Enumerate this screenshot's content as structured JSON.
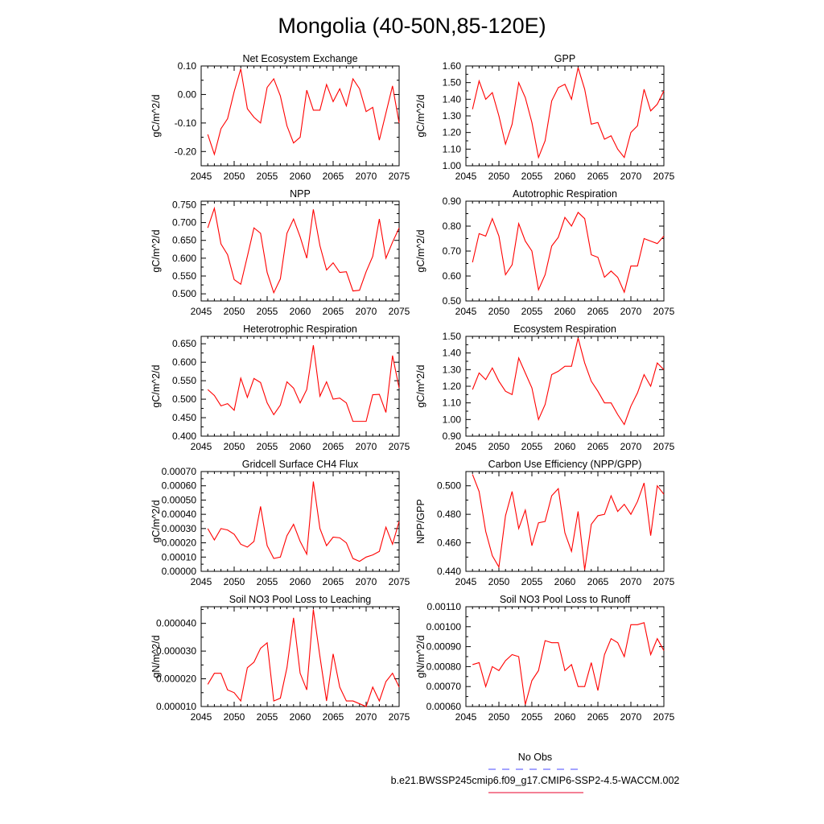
{
  "figure": {
    "title": "Mongolia (40-50N,85-120E)",
    "legend": {
      "obs_label": "No Obs",
      "obs_color": "#4a4aff",
      "model_label": "b.e21.BWSSP245cmip6.f09_g17.CMIP6-SSP2-4.5-WACCM.002",
      "model_color": "#e8002b"
    },
    "line_color": "#ff0000"
  },
  "chart_data": [
    {
      "type": "line",
      "title": "Net Ecosystem Exchange",
      "ylabel": "gC/m^2/d",
      "xlim": [
        2045,
        2075
      ],
      "ylim": [
        -0.25,
        0.1
      ],
      "xticks": [
        2045,
        2050,
        2055,
        2060,
        2065,
        2070,
        2075
      ],
      "yticks": [
        "-0.20",
        "-0.10",
        "0.00",
        "0.10"
      ],
      "x": [
        2046,
        2047,
        2048,
        2049,
        2050,
        2051,
        2052,
        2053,
        2054,
        2055,
        2056,
        2057,
        2058,
        2059,
        2060,
        2061,
        2062,
        2063,
        2064,
        2065,
        2066,
        2067,
        2068,
        2069,
        2070,
        2071,
        2072,
        2073,
        2074,
        2075
      ],
      "y": [
        -0.14,
        -0.21,
        -0.12,
        -0.085,
        0.01,
        0.09,
        -0.05,
        -0.08,
        -0.1,
        0.025,
        0.055,
        -0.005,
        -0.11,
        -0.17,
        -0.15,
        0.015,
        -0.055,
        -0.055,
        0.035,
        -0.025,
        0.02,
        -0.04,
        0.055,
        0.02,
        -0.06,
        -0.045,
        -0.16,
        -0.065,
        0.03,
        -0.1
      ]
    },
    {
      "type": "line",
      "title": "GPP",
      "ylabel": "gC/m^2/d",
      "xlim": [
        2045,
        2075
      ],
      "ylim": [
        1.0,
        1.6
      ],
      "xticks": [
        2045,
        2050,
        2055,
        2060,
        2065,
        2070,
        2075
      ],
      "yticks": [
        "1.00",
        "1.10",
        "1.20",
        "1.30",
        "1.40",
        "1.50",
        "1.60"
      ],
      "x": [
        2046,
        2047,
        2048,
        2049,
        2050,
        2051,
        2052,
        2053,
        2054,
        2055,
        2056,
        2057,
        2058,
        2059,
        2060,
        2061,
        2062,
        2063,
        2064,
        2065,
        2066,
        2067,
        2068,
        2069,
        2070,
        2071,
        2072,
        2073,
        2074,
        2075
      ],
      "y": [
        1.34,
        1.51,
        1.4,
        1.44,
        1.3,
        1.13,
        1.25,
        1.5,
        1.41,
        1.26,
        1.05,
        1.15,
        1.39,
        1.47,
        1.49,
        1.4,
        1.59,
        1.46,
        1.25,
        1.26,
        1.16,
        1.18,
        1.1,
        1.05,
        1.2,
        1.24,
        1.46,
        1.33,
        1.37,
        1.45
      ]
    },
    {
      "type": "line",
      "title": "NPP",
      "ylabel": "gC/m^2/d",
      "xlim": [
        2045,
        2075
      ],
      "ylim": [
        0.48,
        0.76
      ],
      "xticks": [
        2045,
        2050,
        2055,
        2060,
        2065,
        2070,
        2075
      ],
      "yticks": [
        "0.500",
        "0.550",
        "0.600",
        "0.650",
        "0.700",
        "0.750"
      ],
      "x": [
        2046,
        2047,
        2048,
        2049,
        2050,
        2051,
        2052,
        2053,
        2054,
        2055,
        2056,
        2057,
        2058,
        2059,
        2060,
        2061,
        2062,
        2063,
        2064,
        2065,
        2066,
        2067,
        2068,
        2069,
        2070,
        2071,
        2072,
        2073,
        2074,
        2075
      ],
      "y": [
        0.685,
        0.74,
        0.64,
        0.61,
        0.54,
        0.527,
        0.605,
        0.685,
        0.67,
        0.56,
        0.503,
        0.542,
        0.67,
        0.71,
        0.66,
        0.6,
        0.737,
        0.635,
        0.567,
        0.587,
        0.56,
        0.562,
        0.508,
        0.51,
        0.562,
        0.605,
        0.71,
        0.6,
        0.645,
        0.685
      ]
    },
    {
      "type": "line",
      "title": "Autotrophic Respiration",
      "ylabel": "gC/m^2/d",
      "xlim": [
        2045,
        2075
      ],
      "ylim": [
        0.5,
        0.9
      ],
      "xticks": [
        2045,
        2050,
        2055,
        2060,
        2065,
        2070,
        2075
      ],
      "yticks": [
        "0.50",
        "0.60",
        "0.70",
        "0.80",
        "0.90"
      ],
      "x": [
        2046,
        2047,
        2048,
        2049,
        2050,
        2051,
        2052,
        2053,
        2054,
        2055,
        2056,
        2057,
        2058,
        2059,
        2060,
        2061,
        2062,
        2063,
        2064,
        2065,
        2066,
        2067,
        2068,
        2069,
        2070,
        2071,
        2072,
        2073,
        2074,
        2075
      ],
      "y": [
        0.655,
        0.77,
        0.76,
        0.83,
        0.76,
        0.605,
        0.645,
        0.81,
        0.74,
        0.7,
        0.545,
        0.605,
        0.72,
        0.755,
        0.835,
        0.8,
        0.855,
        0.83,
        0.685,
        0.675,
        0.595,
        0.62,
        0.595,
        0.535,
        0.64,
        0.64,
        0.75,
        0.74,
        0.73,
        0.76
      ]
    },
    {
      "type": "line",
      "title": "Heterotrophic Respiration",
      "ylabel": "gC/m^2/d",
      "xlim": [
        2045,
        2075
      ],
      "ylim": [
        0.4,
        0.67
      ],
      "xticks": [
        2045,
        2050,
        2055,
        2060,
        2065,
        2070,
        2075
      ],
      "yticks": [
        "0.400",
        "0.450",
        "0.500",
        "0.550",
        "0.600",
        "0.650"
      ],
      "x": [
        2046,
        2047,
        2048,
        2049,
        2050,
        2051,
        2052,
        2053,
        2054,
        2055,
        2056,
        2057,
        2058,
        2059,
        2060,
        2061,
        2062,
        2063,
        2064,
        2065,
        2066,
        2067,
        2068,
        2069,
        2070,
        2071,
        2072,
        2073,
        2074,
        2075
      ],
      "y": [
        0.526,
        0.51,
        0.482,
        0.488,
        0.47,
        0.557,
        0.505,
        0.556,
        0.545,
        0.49,
        0.458,
        0.484,
        0.547,
        0.53,
        0.49,
        0.526,
        0.646,
        0.508,
        0.547,
        0.5,
        0.503,
        0.49,
        0.44,
        0.44,
        0.44,
        0.512,
        0.513,
        0.464,
        0.618,
        0.53
      ]
    },
    {
      "type": "line",
      "title": "Ecosystem Respiration",
      "ylabel": "gC/m^2/d",
      "xlim": [
        2045,
        2075
      ],
      "ylim": [
        0.9,
        1.5
      ],
      "xticks": [
        2045,
        2050,
        2055,
        2060,
        2065,
        2070,
        2075
      ],
      "yticks": [
        "0.90",
        "1.00",
        "1.10",
        "1.20",
        "1.30",
        "1.40",
        "1.50"
      ],
      "x": [
        2046,
        2047,
        2048,
        2049,
        2050,
        2051,
        2052,
        2053,
        2054,
        2055,
        2056,
        2057,
        2058,
        2059,
        2060,
        2061,
        2062,
        2063,
        2064,
        2065,
        2066,
        2067,
        2068,
        2069,
        2070,
        2071,
        2072,
        2073,
        2074,
        2075
      ],
      "y": [
        1.18,
        1.28,
        1.24,
        1.31,
        1.23,
        1.17,
        1.15,
        1.37,
        1.28,
        1.19,
        1.0,
        1.09,
        1.27,
        1.29,
        1.32,
        1.32,
        1.49,
        1.34,
        1.23,
        1.17,
        1.1,
        1.1,
        1.03,
        0.97,
        1.08,
        1.16,
        1.27,
        1.2,
        1.34,
        1.3
      ]
    },
    {
      "type": "line",
      "title": "Gridcell Surface CH4 Flux",
      "ylabel": "gC/m^2/d",
      "xlim": [
        2045,
        2075
      ],
      "ylim": [
        0.0,
        0.0007
      ],
      "xticks": [
        2045,
        2050,
        2055,
        2060,
        2065,
        2070,
        2075
      ],
      "yticks": [
        "0.00000",
        "0.00010",
        "0.00020",
        "0.00030",
        "0.00040",
        "0.00050",
        "0.00060",
        "0.00070"
      ],
      "x": [
        2046,
        2047,
        2048,
        2049,
        2050,
        2051,
        2052,
        2053,
        2054,
        2055,
        2056,
        2057,
        2058,
        2059,
        2060,
        2061,
        2062,
        2063,
        2064,
        2065,
        2066,
        2067,
        2068,
        2069,
        2070,
        2071,
        2072,
        2073,
        2074,
        2075
      ],
      "y": [
        0.0003,
        0.00022,
        0.0003,
        0.00029,
        0.00026,
        0.00019,
        0.00017,
        0.00021,
        0.000455,
        0.00018,
        9e-05,
        0.0001,
        0.00025,
        0.00033,
        0.00021,
        0.00012,
        0.00063,
        0.0003,
        0.00018,
        0.00024,
        0.000235,
        0.0002,
        9e-05,
        7e-05,
        0.0001,
        0.000115,
        0.00014,
        0.00031,
        0.00019,
        0.00035
      ]
    },
    {
      "type": "line",
      "title": "Carbon Use Efficiency (NPP/GPP)",
      "ylabel": "NPP/GPP",
      "xlim": [
        2045,
        2075
      ],
      "ylim": [
        0.44,
        0.51
      ],
      "xticks": [
        2045,
        2050,
        2055,
        2060,
        2065,
        2070,
        2075
      ],
      "yticks": [
        "0.440",
        "0.460",
        "0.480",
        "0.500"
      ],
      "x": [
        2046,
        2047,
        2048,
        2049,
        2050,
        2051,
        2052,
        2053,
        2054,
        2055,
        2056,
        2057,
        2058,
        2059,
        2060,
        2061,
        2062,
        2063,
        2064,
        2065,
        2066,
        2067,
        2068,
        2069,
        2070,
        2071,
        2072,
        2073,
        2074,
        2075
      ],
      "y": [
        0.508,
        0.496,
        0.468,
        0.451,
        0.443,
        0.479,
        0.496,
        0.47,
        0.483,
        0.458,
        0.474,
        0.475,
        0.493,
        0.498,
        0.467,
        0.454,
        0.482,
        0.441,
        0.473,
        0.479,
        0.48,
        0.493,
        0.482,
        0.487,
        0.48,
        0.489,
        0.502,
        0.465,
        0.5,
        0.494
      ]
    },
    {
      "type": "line",
      "title": "Soil NO3 Pool Loss to Leaching",
      "ylabel": "gN/m^2/d",
      "xlim": [
        2045,
        2075
      ],
      "ylim": [
        1e-05,
        4.6e-05
      ],
      "xticks": [
        2045,
        2050,
        2055,
        2060,
        2065,
        2070,
        2075
      ],
      "yticks": [
        "0.000010",
        "0.000020",
        "0.000030",
        "0.000040"
      ],
      "x": [
        2046,
        2047,
        2048,
        2049,
        2050,
        2051,
        2052,
        2053,
        2054,
        2055,
        2056,
        2057,
        2058,
        2059,
        2060,
        2061,
        2062,
        2063,
        2064,
        2065,
        2066,
        2067,
        2068,
        2069,
        2070,
        2071,
        2072,
        2073,
        2074,
        2075
      ],
      "y": [
        1.8e-05,
        2.2e-05,
        2.2e-05,
        1.6e-05,
        1.5e-05,
        1.2e-05,
        2.4e-05,
        2.6e-05,
        3.1e-05,
        3.3e-05,
        1.2e-05,
        1.3e-05,
        2.4e-05,
        4.2e-05,
        2.2e-05,
        1.6e-05,
        4.5e-05,
        2.8e-05,
        1.2e-05,
        2.9e-05,
        1.7e-05,
        1.2e-05,
        1.2e-05,
        1.1e-05,
        1e-05,
        1.7e-05,
        1.2e-05,
        1.9e-05,
        2.2e-05,
        1.7e-05
      ]
    },
    {
      "type": "line",
      "title": "Soil NO3 Pool Loss to Runoff",
      "ylabel": "gN/m^2/d",
      "xlim": [
        2045,
        2075
      ],
      "ylim": [
        0.0006,
        0.0011
      ],
      "xticks": [
        2045,
        2050,
        2055,
        2060,
        2065,
        2070,
        2075
      ],
      "yticks": [
        "0.00060",
        "0.00070",
        "0.00080",
        "0.00090",
        "0.00100",
        "0.00110"
      ],
      "x": [
        2046,
        2047,
        2048,
        2049,
        2050,
        2051,
        2052,
        2053,
        2054,
        2055,
        2056,
        2057,
        2058,
        2059,
        2060,
        2061,
        2062,
        2063,
        2064,
        2065,
        2066,
        2067,
        2068,
        2069,
        2070,
        2071,
        2072,
        2073,
        2074,
        2075
      ],
      "y": [
        0.00081,
        0.00082,
        0.0007,
        0.0008,
        0.00078,
        0.00083,
        0.00086,
        0.00085,
        0.00061,
        0.00073,
        0.00078,
        0.00093,
        0.00092,
        0.00092,
        0.00078,
        0.00081,
        0.0007,
        0.0007,
        0.00082,
        0.00068,
        0.00086,
        0.00094,
        0.00092,
        0.00085,
        0.00101,
        0.00101,
        0.00102,
        0.00086,
        0.00094,
        0.00088
      ]
    }
  ]
}
